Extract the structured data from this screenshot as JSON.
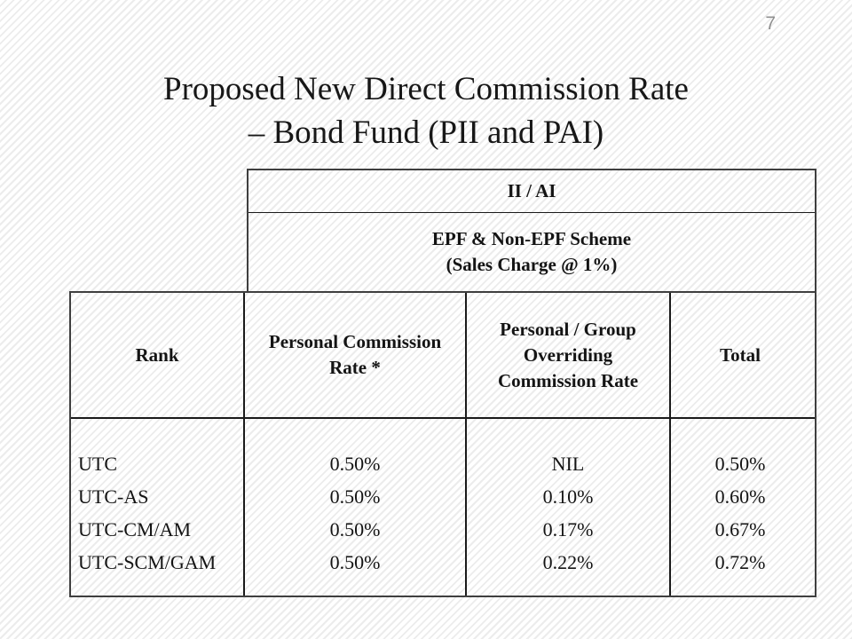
{
  "slide": {
    "page_number": "7",
    "title_line1": "Proposed New Direct Commission Rate",
    "title_line2": "– Bond Fund (PII and PAI)"
  },
  "table": {
    "group_header": "II / AI",
    "scheme_header": "EPF & Non-EPF Scheme\n(Sales Charge @ 1%)",
    "col_headers": {
      "rank": "Rank",
      "personal": "Personal Commission\nRate *",
      "overriding": "Personal / Group\nOverriding\nCommission Rate",
      "total": "Total"
    },
    "rows": [
      {
        "rank": "UTC",
        "personal": "0.50%",
        "overriding": "NIL",
        "total": "0.50%"
      },
      {
        "rank": "UTC-AS",
        "personal": "0.50%",
        "overriding": "0.10%",
        "total": "0.60%"
      },
      {
        "rank": "UTC-CM/AM",
        "personal": "0.50%",
        "overriding": "0.17%",
        "total": "0.67%"
      },
      {
        "rank": "UTC-SCM/GAM",
        "personal": "0.50%",
        "overriding": "0.22%",
        "total": "0.72%"
      }
    ]
  },
  "colors": {
    "border_outer": "#3f3f3f",
    "border_inner": "#1a1a1a",
    "text": "#141414",
    "page_number": "#8f8f8f",
    "background_stripe": "#ececec"
  }
}
